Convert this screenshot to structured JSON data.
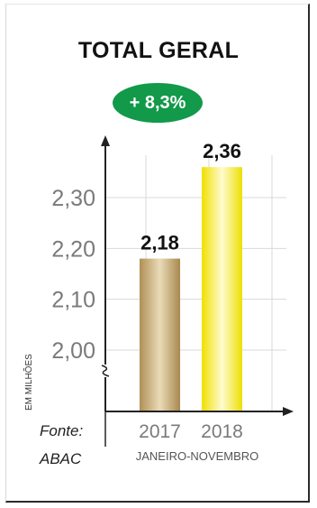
{
  "chart_data": {
    "type": "bar",
    "title": "TOTAL GERAL",
    "badge": "+ 8,3%",
    "categories": [
      "2017",
      "2018"
    ],
    "values": [
      2.18,
      2.36
    ],
    "value_labels": [
      "2,18",
      "2,36"
    ],
    "ylabel": "EM MILHÕES",
    "xlabel": "JANEIRO-NOVEMBRO",
    "yticks": [
      {
        "value": 2.0,
        "label": "2,00"
      },
      {
        "value": 2.1,
        "label": "2,10"
      },
      {
        "value": 2.2,
        "label": "2,20"
      },
      {
        "value": 2.3,
        "label": "2,30"
      }
    ],
    "ylim": [
      1.9,
      2.37
    ],
    "axis_break": true,
    "grid": true,
    "source_lines": [
      "Fonte:",
      "ABAC"
    ],
    "colors": {
      "bar_2017": "#c4a46e",
      "bar_2018": "#f4e614",
      "badge": "#12994a",
      "axis": "#222222",
      "grid": "#d9d9d9",
      "tick_label": "#7a7a7a"
    }
  }
}
